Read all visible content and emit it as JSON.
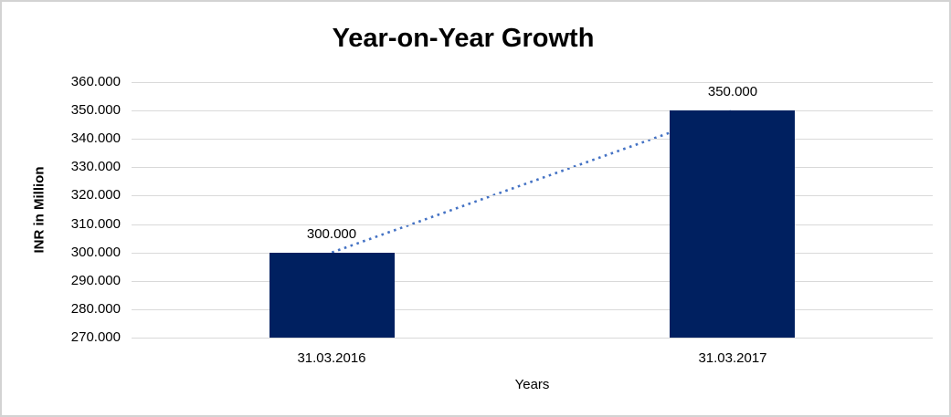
{
  "chart_data": {
    "type": "bar",
    "title": "Year-on-Year Growth",
    "xlabel": "Years",
    "ylabel": "INR in Million",
    "categories": [
      "31.03.2016",
      "31.03.2017"
    ],
    "values": [
      300000,
      350000
    ],
    "value_labels": [
      "300.000",
      "350.000"
    ],
    "ylim": [
      270000,
      360000
    ],
    "ytick_step": 10000,
    "yticks": [
      {
        "label": "270.000",
        "value": 270000
      },
      {
        "label": "280.000",
        "value": 280000
      },
      {
        "label": "290.000",
        "value": 290000
      },
      {
        "label": "300.000",
        "value": 300000
      },
      {
        "label": "310.000",
        "value": 310000
      },
      {
        "label": "320.000",
        "value": 320000
      },
      {
        "label": "330.000",
        "value": 330000
      },
      {
        "label": "340.000",
        "value": 340000
      },
      {
        "label": "350.000",
        "value": 350000
      },
      {
        "label": "360.000",
        "value": 360000
      }
    ],
    "grid": true,
    "legend": false,
    "trendline": {
      "style": "dotted",
      "from_point": {
        "category_index": 0,
        "value": 300000
      },
      "to_point": {
        "category_index": 1,
        "value": 350000
      }
    },
    "colors": {
      "bar_fill": "#002060",
      "trendline": "#4472C4",
      "gridline": "#D9D9D9",
      "frame_border": "#D3D3D3",
      "text": "#000000"
    }
  }
}
